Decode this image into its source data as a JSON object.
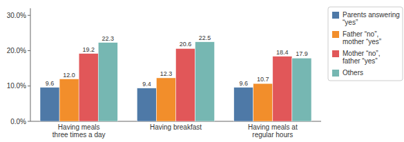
{
  "chart_data": {
    "type": "bar",
    "categories": [
      "Having meals\nthree times a day",
      "Having breakfast",
      "Having meals at\nregular hours"
    ],
    "series": [
      {
        "name": "Parents answering\n“yes”",
        "values": [
          9.6,
          9.4,
          9.6
        ],
        "value_labels": [
          "9.6",
          "9.4",
          "9.6"
        ]
      },
      {
        "name": "Father “no”,\nmother “yes”",
        "values": [
          12.0,
          12.3,
          10.7
        ],
        "value_labels": [
          "12.0",
          "12.3",
          "10.7"
        ]
      },
      {
        "name": "Mother “no”,\nfather “yes”",
        "values": [
          19.2,
          20.6,
          18.4
        ],
        "value_labels": [
          "19.2",
          "20.6",
          "18.4"
        ]
      },
      {
        "name": "Others",
        "values": [
          22.3,
          22.5,
          17.9
        ],
        "value_labels": [
          "22.3",
          "22.5",
          "17.9"
        ]
      }
    ],
    "ylim": [
      0,
      32
    ],
    "yticks": [
      {
        "value": 0,
        "label": "0.0%"
      },
      {
        "value": 10,
        "label": "10.0%"
      },
      {
        "value": 20,
        "label": "20.0%"
      },
      {
        "value": 30,
        "label": "30.0%"
      }
    ],
    "grid": false,
    "legend": "upper right",
    "data_labels": true
  }
}
